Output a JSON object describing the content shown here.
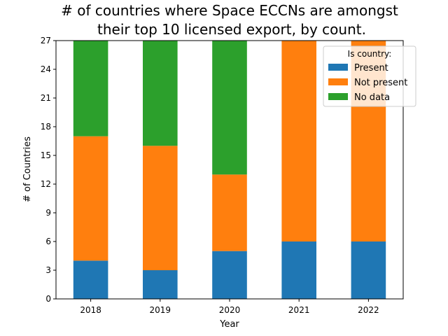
{
  "chart_data": {
    "type": "bar",
    "stacked": true,
    "title": "# of countries where Space ECCNs are amongst their top 10 licensed export, by count.",
    "title_lines": [
      "# of countries where Space ECCNs are amongst",
      "their top 10 licensed export, by count."
    ],
    "xlabel": "Year",
    "ylabel": "# of Countries",
    "categories": [
      "2018",
      "2019",
      "2020",
      "2021",
      "2022"
    ],
    "ylim": [
      0,
      27
    ],
    "yticks": [
      0,
      3,
      6,
      9,
      12,
      15,
      18,
      21,
      24,
      27
    ],
    "series": [
      {
        "name": "Present",
        "color": "#1f77b4",
        "values": [
          4,
          3,
          5,
          6,
          6
        ]
      },
      {
        "name": "Not present",
        "color": "#ff7f0e",
        "values": [
          13,
          13,
          8,
          21,
          21
        ]
      },
      {
        "name": "No data",
        "color": "#2ca02c",
        "values": [
          10,
          11,
          14,
          0,
          0
        ]
      }
    ],
    "legend": {
      "title": "Is country:",
      "placement": "top-right"
    },
    "grid": false
  }
}
